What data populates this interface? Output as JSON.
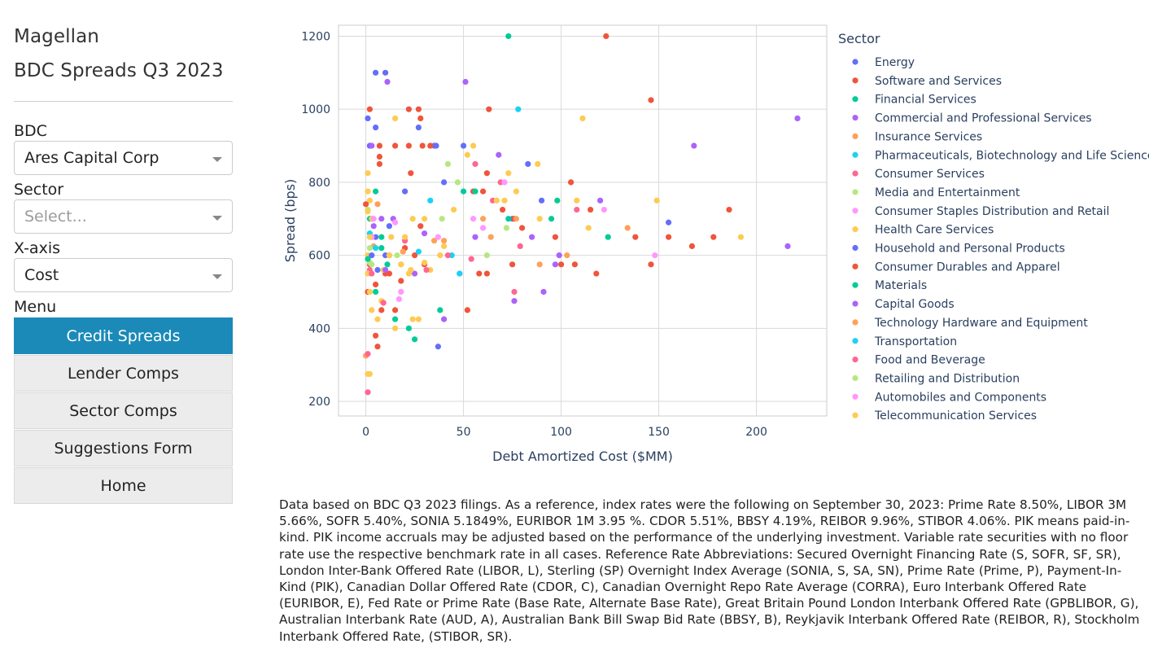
{
  "sidebar": {
    "brand": "Magellan",
    "subtitle": "BDC Spreads Q3 2023",
    "bdc_label": "BDC",
    "bdc_value": "Ares Capital Corp",
    "sector_label": "Sector",
    "sector_placeholder": "Select...",
    "xaxis_label": "X-axis",
    "xaxis_value": "Cost",
    "menu_label": "Menu",
    "menu_items": [
      "Credit Spreads",
      "Lender Comps",
      "Sector Comps",
      "Suggestions Form",
      "Home"
    ]
  },
  "colors": {
    "active_button": "#1b8ab8",
    "grid": "#d9d9d9",
    "plot_border": "#cccccc"
  },
  "footnote": "Data based on BDC Q3 2023 filings. As a reference, index rates were the following on September 30, 2023: Prime Rate 8.50%, LIBOR 3M 5.66%, SOFR 5.40%, SONIA 5.1849%, EURIBOR 1M 3.95 %. CDOR 5.51%, BBSY 4.19%, REIBOR 9.96%, STIBOR 4.06%. PIK means paid-in-kind. PIK income accruals may be adjusted based on the performance of the underlying investment. Variable rate securities with no floor rate use the respective benchmark rate in all cases. Reference Rate Abbreviations: Secured Overnight Financing Rate (S, SOFR, SF, SR), London Inter-Bank Offered Rate (LIBOR, L), Sterling (SP) Overnight Index Average (SONIA, S, SA, SN), Prime Rate (Prime, P), Payment-In-Kind (PIK), Canadian Dollar Offered Rate (CDOR, C), Canadian Overnight Repo Rate Average (CORRA), Euro Interbank Offered Rate (EURIBOR, E), Fed Rate or Prime Rate (Base Rate, Alternate Base Rate), Great Britain Pound London Interbank Offered Rate (GPBLIBOR, G), Australian Interbank Rate (AUD, A), Australian Bank Bill Swap Bid Rate (BBSY, B), Reykjavik Interbank Offered Rate (REIBOR, R), Stockholm Interbank Offered Rate, (STIBOR, SR).",
  "chart_data": {
    "type": "scatter",
    "title": "",
    "xlabel": "Debt Amortized Cost ($MM)",
    "ylabel": "Spread (bps)",
    "xlim": [
      -14,
      236
    ],
    "ylim": [
      160,
      1230
    ],
    "xticks": [
      0,
      50,
      100,
      150,
      200
    ],
    "yticks": [
      200,
      400,
      600,
      800,
      1000,
      1200
    ],
    "grid": true,
    "legend_title": "Sector",
    "legend_position": "right",
    "series": [
      {
        "name": "Energy",
        "color": "#636efa",
        "points": [
          [
            5,
            1100
          ],
          [
            10,
            1100
          ],
          [
            1,
            975
          ],
          [
            5,
            950
          ],
          [
            27,
            950
          ],
          [
            2,
            900
          ],
          [
            36,
            900
          ],
          [
            50,
            900
          ],
          [
            35,
            900
          ],
          [
            83,
            850
          ],
          [
            40,
            800
          ],
          [
            20,
            775
          ],
          [
            90,
            750
          ],
          [
            75,
            700
          ],
          [
            155,
            690
          ],
          [
            5,
            650
          ],
          [
            10,
            600
          ],
          [
            37,
            350
          ],
          [
            3,
            700
          ],
          [
            12,
            680
          ]
        ]
      },
      {
        "name": "Software and Services",
        "color": "#ef553b",
        "points": [
          [
            123,
            1200
          ],
          [
            146,
            1025
          ],
          [
            2,
            1000
          ],
          [
            22,
            1000
          ],
          [
            27,
            1000
          ],
          [
            63,
            1000
          ],
          [
            28,
            975
          ],
          [
            7,
            900
          ],
          [
            15,
            900
          ],
          [
            22,
            900
          ],
          [
            29,
            900
          ],
          [
            33,
            900
          ],
          [
            7,
            850
          ],
          [
            62,
            825
          ],
          [
            105,
            800
          ],
          [
            55,
            775
          ],
          [
            60,
            775
          ],
          [
            115,
            725
          ],
          [
            70,
            725
          ],
          [
            76,
            700
          ],
          [
            80,
            675
          ],
          [
            186,
            725
          ],
          [
            178,
            650
          ],
          [
            167,
            625
          ],
          [
            155,
            650
          ],
          [
            138,
            650
          ],
          [
            97,
            650
          ],
          [
            107,
            575
          ],
          [
            100,
            575
          ],
          [
            146,
            575
          ],
          [
            75,
            575
          ],
          [
            118,
            550
          ],
          [
            58,
            550
          ],
          [
            62,
            550
          ],
          [
            30,
            575
          ],
          [
            10,
            550
          ],
          [
            5,
            520
          ],
          [
            8,
            450
          ],
          [
            15,
            450
          ],
          [
            52,
            450
          ],
          [
            5,
            380
          ],
          [
            6,
            350
          ],
          [
            1,
            500
          ],
          [
            3,
            650
          ],
          [
            12,
            600
          ],
          [
            20,
            620
          ],
          [
            2,
            575
          ],
          [
            28,
            680
          ]
        ]
      },
      {
        "name": "Financial Services",
        "color": "#00cc96",
        "points": [
          [
            73,
            1200
          ],
          [
            5,
            775
          ],
          [
            2,
            700
          ],
          [
            50,
            775
          ],
          [
            56,
            775
          ],
          [
            73,
            700
          ],
          [
            95,
            700
          ],
          [
            98,
            750
          ],
          [
            124,
            650
          ],
          [
            38,
            450
          ],
          [
            22,
            400
          ],
          [
            25,
            370
          ],
          [
            15,
            425
          ],
          [
            8,
            650
          ],
          [
            11,
            575
          ]
        ]
      },
      {
        "name": "Commercial and Professional Services",
        "color": "#ab63fa",
        "points": [
          [
            51,
            1075
          ],
          [
            11,
            1075
          ],
          [
            221,
            975
          ],
          [
            168,
            900
          ],
          [
            68,
            875
          ],
          [
            120,
            750
          ],
          [
            216,
            625
          ],
          [
            85,
            650
          ],
          [
            99,
            600
          ],
          [
            97,
            575
          ],
          [
            91,
            500
          ],
          [
            76,
            475
          ],
          [
            40,
            425
          ],
          [
            25,
            550
          ],
          [
            3,
            900
          ],
          [
            8,
            700
          ],
          [
            14,
            700
          ],
          [
            30,
            660
          ]
        ]
      },
      {
        "name": "Insurance Services",
        "color": "#ffa15a",
        "points": [
          [
            35,
            640
          ],
          [
            40,
            640
          ],
          [
            77,
            700
          ],
          [
            60,
            700
          ],
          [
            89,
            575
          ],
          [
            103,
            600
          ],
          [
            134,
            675
          ],
          [
            64,
            650
          ],
          [
            4,
            625
          ],
          [
            18,
            575
          ],
          [
            0,
            325
          ]
        ]
      },
      {
        "name": "Pharmaceuticals, Biotechnology and Life Sciences",
        "color": "#19d3f3",
        "points": [
          [
            78,
            1000
          ],
          [
            33,
            750
          ],
          [
            44,
            600
          ],
          [
            5,
            620
          ],
          [
            2,
            660
          ]
        ]
      },
      {
        "name": "Consumer Services",
        "color": "#ff6692",
        "points": [
          [
            56,
            850
          ],
          [
            69,
            800
          ],
          [
            65,
            750
          ],
          [
            108,
            725
          ],
          [
            79,
            625
          ],
          [
            76,
            500
          ],
          [
            1,
            225
          ],
          [
            1,
            330
          ],
          [
            2,
            560
          ],
          [
            20,
            640
          ],
          [
            42,
            600
          ]
        ]
      },
      {
        "name": "Media and Entertainment",
        "color": "#b6e880",
        "points": [
          [
            42,
            850
          ],
          [
            47,
            800
          ],
          [
            39,
            700
          ],
          [
            72,
            675
          ],
          [
            62,
            600
          ],
          [
            1,
            725
          ],
          [
            3,
            575
          ],
          [
            2,
            580
          ]
        ]
      },
      {
        "name": "Consumer Staples Distribution and Retail",
        "color": "#ff97ff",
        "points": [
          [
            71,
            800
          ],
          [
            122,
            725
          ],
          [
            148,
            600
          ],
          [
            55,
            700
          ],
          [
            60,
            675
          ],
          [
            37,
            650
          ],
          [
            18,
            500
          ],
          [
            3,
            650
          ],
          [
            15,
            690
          ]
        ]
      },
      {
        "name": "Health Care Services",
        "color": "#fecb52",
        "points": [
          [
            15,
            975
          ],
          [
            111,
            975
          ],
          [
            55,
            900
          ],
          [
            52,
            875
          ],
          [
            88,
            850
          ],
          [
            73,
            825
          ],
          [
            77,
            775
          ],
          [
            108,
            750
          ],
          [
            149,
            750
          ],
          [
            192,
            650
          ],
          [
            114,
            675
          ],
          [
            89,
            700
          ],
          [
            71,
            750
          ],
          [
            67,
            750
          ],
          [
            45,
            725
          ],
          [
            30,
            700
          ],
          [
            24,
            700
          ],
          [
            20,
            650
          ],
          [
            38,
            600
          ],
          [
            40,
            625
          ],
          [
            1,
            825
          ],
          [
            1,
            775
          ],
          [
            2,
            750
          ],
          [
            3,
            700
          ],
          [
            2,
            650
          ],
          [
            1,
            600
          ],
          [
            1,
            550
          ],
          [
            2,
            500
          ],
          [
            3,
            450
          ],
          [
            6,
            425
          ],
          [
            8,
            475
          ],
          [
            15,
            400
          ],
          [
            24,
            425
          ],
          [
            27,
            425
          ],
          [
            1,
            275
          ],
          [
            2,
            275
          ],
          [
            12,
            600
          ],
          [
            18,
            575
          ],
          [
            9,
            560
          ],
          [
            22,
            550
          ],
          [
            33,
            560
          ],
          [
            30,
            580
          ]
        ]
      },
      {
        "name": "Household and Personal Products",
        "color": "#636efa",
        "points": [
          [
            3,
            600
          ],
          [
            6,
            560
          ]
        ]
      },
      {
        "name": "Consumer Durables and Apparel",
        "color": "#ef553b",
        "points": [
          [
            7,
            870
          ],
          [
            23,
            825
          ],
          [
            12,
            550
          ],
          [
            18,
            530
          ],
          [
            25,
            600
          ],
          [
            0,
            740
          ]
        ]
      },
      {
        "name": "Materials",
        "color": "#00cc96",
        "points": [
          [
            5,
            500
          ],
          [
            1,
            590
          ],
          [
            8,
            620
          ]
        ]
      },
      {
        "name": "Capital Goods",
        "color": "#ab63fa",
        "points": [
          [
            48,
            550
          ],
          [
            56,
            650
          ],
          [
            4,
            680
          ],
          [
            10,
            560
          ]
        ]
      },
      {
        "name": "Technology Hardware and Equipment",
        "color": "#ffa15a",
        "points": [
          [
            6,
            740
          ],
          [
            19,
            610
          ]
        ]
      },
      {
        "name": "Transportation",
        "color": "#19d3f3",
        "points": [
          [
            27,
            610
          ],
          [
            48,
            550
          ]
        ]
      },
      {
        "name": "Food and Beverage",
        "color": "#ff6692",
        "points": [
          [
            3,
            550
          ],
          [
            9,
            470
          ],
          [
            31,
            560
          ],
          [
            54,
            590
          ]
        ]
      },
      {
        "name": "Retailing and Distribution",
        "color": "#b6e880",
        "points": [
          [
            2,
            620
          ],
          [
            16,
            600
          ]
        ]
      },
      {
        "name": "Automobiles and Components",
        "color": "#ff97ff",
        "points": [
          [
            4,
            700
          ],
          [
            17,
            480
          ]
        ]
      },
      {
        "name": "Telecommunication Services",
        "color": "#fecb52",
        "points": [
          [
            1,
            720
          ],
          [
            13,
            650
          ],
          [
            23,
            560
          ]
        ]
      }
    ]
  }
}
